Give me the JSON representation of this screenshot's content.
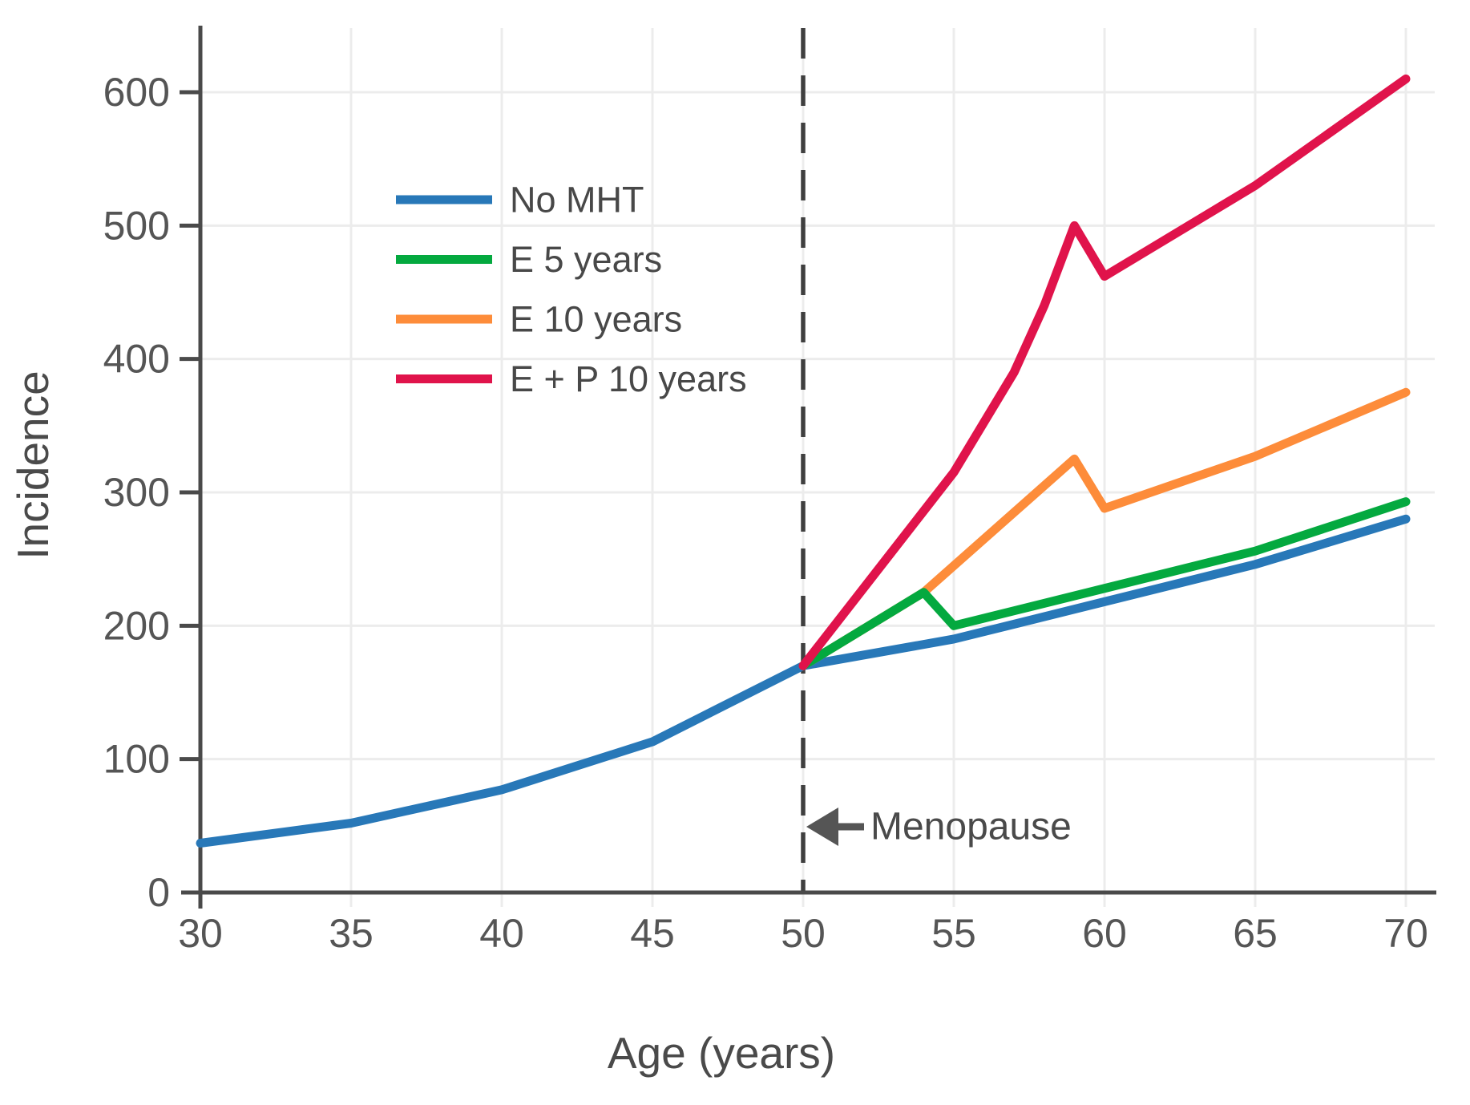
{
  "figure": {
    "background": "#ffffff",
    "grid_color": "#ececec",
    "axis_color": "#4a4a4a",
    "text_color": "#4f4f4f",
    "annotation": {
      "text": "Menopause",
      "arrow": "left-arrow",
      "at_age": 50
    },
    "menopause_line": {
      "x": 50,
      "style": "dashed",
      "color": "#3f3f3f"
    }
  },
  "chart_data": {
    "type": "line",
    "title": "",
    "xlabel": "Age (years)",
    "ylabel": "Incidence",
    "xlim": [
      30,
      70
    ],
    "ylim": [
      0,
      650
    ],
    "x_ticks": [
      30,
      35,
      40,
      45,
      50,
      55,
      60,
      65,
      70
    ],
    "y_ticks": [
      0,
      100,
      200,
      300,
      400,
      500,
      600
    ],
    "grid": true,
    "legend_position": "upper-left-inside",
    "vline": {
      "x": 50,
      "style": "dashed",
      "label": "Menopause"
    },
    "series": [
      {
        "name": "No MHT",
        "color": "#2878b8",
        "points": [
          [
            30,
            37
          ],
          [
            35,
            52
          ],
          [
            40,
            77
          ],
          [
            45,
            113
          ],
          [
            50,
            170
          ],
          [
            55,
            190
          ],
          [
            60,
            218
          ],
          [
            65,
            246
          ],
          [
            70,
            280
          ]
        ]
      },
      {
        "name": "E 5 years",
        "color": "#04a93f",
        "points": [
          [
            50,
            170
          ],
          [
            54,
            225
          ],
          [
            55,
            200
          ],
          [
            60,
            228
          ],
          [
            65,
            256
          ],
          [
            70,
            293
          ]
        ]
      },
      {
        "name": "E 10 years",
        "color": "#fd8c3a",
        "points": [
          [
            50,
            170
          ],
          [
            54,
            225
          ],
          [
            59,
            325
          ],
          [
            60,
            288
          ],
          [
            65,
            327
          ],
          [
            70,
            375
          ]
        ]
      },
      {
        "name": "E + P 10 years",
        "color": "#e0134b",
        "points": [
          [
            50,
            170
          ],
          [
            55,
            315
          ],
          [
            57,
            390
          ],
          [
            58,
            440
          ],
          [
            59,
            500
          ],
          [
            60,
            462
          ],
          [
            65,
            530
          ],
          [
            70,
            610
          ]
        ]
      }
    ]
  }
}
